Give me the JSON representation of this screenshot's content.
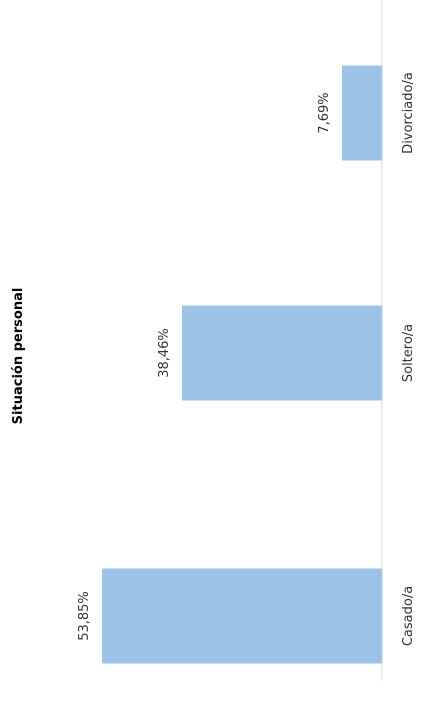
{
  "chart_data": {
    "type": "bar",
    "orientation": "horizontal",
    "title": "Situación personal",
    "categories": [
      "Casado/a",
      "Soltero/a",
      "Divorciado/a"
    ],
    "values": [
      53.85,
      38.46,
      7.69
    ],
    "data_labels": [
      "53,85%",
      "38,46%",
      "7,69%"
    ],
    "xlim": [
      0,
      100
    ],
    "grid": false,
    "legend": "none",
    "bar_color": "#9DC3E6",
    "axis_color": "#D9D9D9"
  }
}
